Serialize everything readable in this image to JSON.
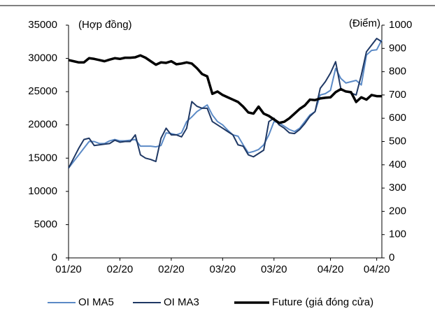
{
  "chart_data": {
    "type": "line",
    "y_label": "(Hợp đồng)",
    "y2_label": "(Điểm)",
    "categories": [
      "01/20",
      null,
      null,
      null,
      null,
      null,
      null,
      null,
      null,
      null,
      "02/20",
      null,
      null,
      null,
      null,
      null,
      null,
      null,
      null,
      null,
      "02/20",
      null,
      null,
      null,
      null,
      null,
      null,
      null,
      null,
      null,
      "03/20",
      null,
      null,
      null,
      null,
      null,
      null,
      null,
      null,
      null,
      "03/20",
      null,
      null,
      null,
      null,
      null,
      null,
      null,
      null,
      null,
      null,
      "04/20",
      null,
      null,
      null,
      null,
      null,
      null,
      null,
      null,
      "04/20",
      null
    ],
    "ylim": [
      0,
      35000
    ],
    "yticks": [
      0,
      5000,
      10000,
      15000,
      20000,
      25000,
      30000,
      35000
    ],
    "y2lim": [
      0,
      1000
    ],
    "y2ticks": [
      0,
      100,
      200,
      300,
      400,
      500,
      600,
      700,
      800,
      900,
      1000
    ],
    "series": [
      {
        "name": "OI MA5",
        "color": "#5b8ac6",
        "values": [
          13500,
          14500,
          15500,
          16500,
          17500,
          17500,
          17200,
          17200,
          17600,
          17800,
          17600,
          17600,
          17700,
          17800,
          16800,
          16800,
          16800,
          16700,
          16900,
          18800,
          18700,
          18500,
          18800,
          20500,
          21200,
          22000,
          22500,
          23000,
          21500,
          20500,
          20000,
          19200,
          18500,
          18300,
          17000,
          15800,
          16000,
          16300,
          17000,
          18500,
          20500,
          20300,
          19800,
          19300,
          19000,
          19500,
          20500,
          21500,
          22000,
          24500,
          24700,
          25200,
          28500,
          27000,
          26300,
          26500,
          26700,
          26000,
          30500,
          31200,
          31300,
          32800
        ]
      },
      {
        "name": "OI MA3",
        "color": "#1f3864",
        "values": [
          13500,
          15000,
          16500,
          17800,
          18000,
          16900,
          17000,
          17100,
          17200,
          17700,
          17400,
          17500,
          17500,
          18500,
          15500,
          15000,
          14800,
          14500,
          18000,
          19500,
          18500,
          18500,
          18200,
          19500,
          23500,
          22800,
          22500,
          22500,
          20500,
          20000,
          19500,
          19000,
          18500,
          17000,
          16800,
          15500,
          15200,
          15700,
          16200,
          20500,
          21000,
          20000,
          19500,
          18800,
          18700,
          19300,
          20200,
          21300,
          22000,
          25500,
          26500,
          27800,
          29500,
          25500,
          25000,
          24800,
          24500,
          27500,
          31000,
          32000,
          33000,
          32500
        ]
      },
      {
        "name": "Future (giá đóng cửa)",
        "color": "#000000",
        "axis": "y2",
        "values": [
          850,
          845,
          840,
          840,
          858,
          855,
          850,
          845,
          852,
          858,
          855,
          860,
          860,
          862,
          870,
          860,
          845,
          830,
          840,
          838,
          845,
          832,
          835,
          840,
          835,
          815,
          790,
          780,
          705,
          715,
          700,
          690,
          680,
          670,
          650,
          625,
          620,
          650,
          620,
          610,
          595,
          580,
          585,
          600,
          620,
          640,
          655,
          680,
          678,
          685,
          688,
          690,
          712,
          725,
          715,
          712,
          670,
          690,
          680,
          700,
          695,
          695
        ]
      }
    ]
  }
}
